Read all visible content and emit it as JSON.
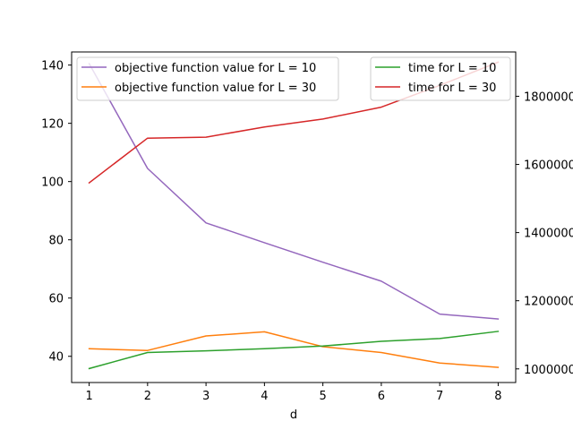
{
  "chart_data": {
    "type": "line",
    "xlabel": "d",
    "x": [
      1,
      2,
      3,
      4,
      5,
      6,
      7,
      8
    ],
    "xlim": [
      0.7,
      8.3
    ],
    "xticks": [
      1,
      2,
      3,
      4,
      5,
      6,
      7,
      8
    ],
    "grid": false,
    "left_axis": {
      "ylim": [
        31.0,
        144.5
      ],
      "ticks": [
        40,
        60,
        80,
        100,
        120,
        140
      ],
      "legend_placement": "upper left",
      "series": [
        {
          "name": "objective function value for L = 10",
          "color": "#9467bd",
          "values": [
            140.5,
            104.5,
            85.8,
            79.0,
            72.3,
            65.8,
            54.5,
            52.8
          ]
        },
        {
          "name": "objective function value for L = 30",
          "color": "#ff7f0e",
          "values": [
            42.6,
            42.0,
            47.0,
            48.4,
            43.3,
            41.3,
            37.7,
            36.2
          ]
        }
      ]
    },
    "right_axis": {
      "ylim": [
        960000,
        1930000
      ],
      "ticks": [
        1000000,
        1200000,
        1400000,
        1600000,
        1800000
      ],
      "tick_labels": [
        "1000000",
        "1200000",
        "1400000",
        "1600000",
        "1800000"
      ],
      "legend_placement": "upper right",
      "series": [
        {
          "name": "time for L = 10",
          "color": "#2ca02c",
          "values": [
            1001000,
            1048000,
            1053000,
            1059000,
            1067000,
            1081000,
            1089000,
            1110000
          ]
        },
        {
          "name": "time for L = 30",
          "color": "#d62728",
          "values": [
            1546000,
            1677000,
            1680000,
            1710000,
            1733000,
            1768000,
            1832000,
            1900000
          ]
        }
      ]
    }
  }
}
